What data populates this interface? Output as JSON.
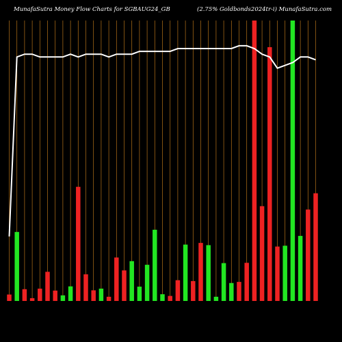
{
  "header": {
    "left_title": "MunafaSutra  Money Flow  Charts for SGBAUG24_GB",
    "right_title": "(2.75% Goldbonds2024tr-i) MunafaSutra.com"
  },
  "colors": {
    "background": "#000000",
    "grid": "#b8741a",
    "up": "#22e622",
    "down": "#ee2222",
    "line": "#ffffff"
  },
  "chart_data": {
    "type": "bar",
    "title": "",
    "xlabel": "",
    "ylabel": "",
    "ylim": [
      0,
      100
    ],
    "grid": "vertical",
    "categories": [
      "",
      "",
      "",
      "",
      "",
      "",
      "",
      "",
      "",
      "",
      "",
      "",
      "",
      "",
      "",
      "",
      "",
      "",
      "",
      "",
      "",
      "",
      "",
      "",
      "",
      "",
      "",
      "",
      "",
      "",
      "",
      "",
      "",
      "",
      "",
      "",
      "",
      "",
      "",
      "",
      ""
    ],
    "values": [
      2.3,
      24.6,
      4.2,
      1.0,
      4.4,
      10.4,
      3.7,
      2.0,
      5.2,
      40.7,
      9.5,
      3.8,
      4.4,
      1.5,
      15.5,
      10.9,
      14.2,
      5.1,
      12.9,
      25.4,
      2.4,
      1.8,
      7.4,
      20.1,
      7.1,
      20.7,
      19.9,
      1.5,
      13.5,
      6.4,
      6.8,
      13.6,
      100,
      33.8,
      90.5,
      19.4,
      19.7,
      100,
      23.2,
      32.6,
      38.4
    ],
    "colors": [
      "red",
      "green",
      "red",
      "red",
      "red",
      "red",
      "red",
      "green",
      "green",
      "red",
      "red",
      "red",
      "green",
      "red",
      "red",
      "red",
      "green",
      "green",
      "green",
      "green",
      "green",
      "red",
      "red",
      "green",
      "red",
      "red",
      "green",
      "green",
      "green",
      "green",
      "red",
      "red",
      "red",
      "red",
      "red",
      "red",
      "green",
      "green",
      "green",
      "red",
      "red"
    ],
    "line": [
      23,
      87,
      88,
      88,
      87,
      87,
      87,
      87,
      88,
      87,
      88,
      88,
      88,
      87,
      88,
      88,
      88,
      89,
      89,
      89,
      89,
      89,
      90,
      90,
      90,
      90,
      90,
      90,
      90,
      90,
      91,
      91,
      90,
      88,
      87,
      83,
      84,
      85,
      87,
      87,
      86
    ]
  }
}
